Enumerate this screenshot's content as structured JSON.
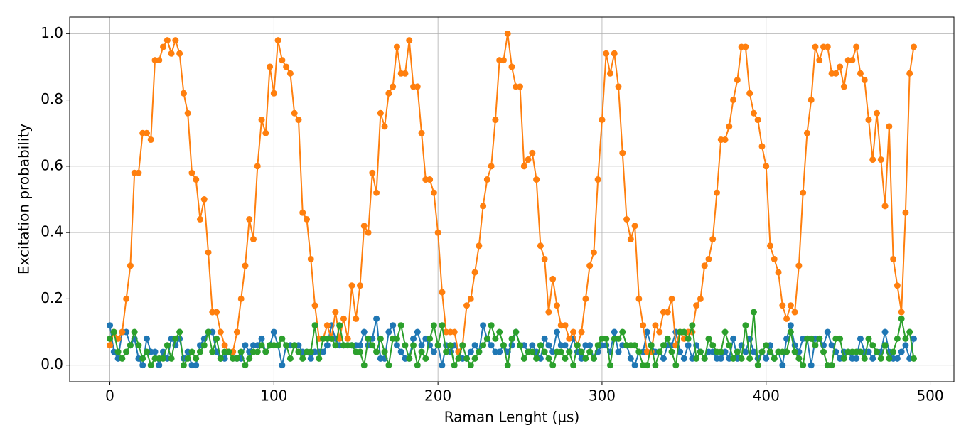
{
  "chart_data": {
    "type": "line",
    "xlabel": "Raman Lenght (μs)",
    "ylabel": "Excitation probability",
    "xlim": [
      -24.5,
      514.5
    ],
    "ylim": [
      -0.05,
      1.05
    ],
    "xticks": [
      0,
      100,
      200,
      300,
      400,
      500
    ],
    "yticks": [
      {
        "value": 0,
        "label": "0.0"
      },
      {
        "value": 0.2,
        "label": "0.2"
      },
      {
        "value": 0.4,
        "label": "0.4"
      },
      {
        "value": 0.6,
        "label": "0.6"
      },
      {
        "value": 0.8,
        "label": "0.8"
      },
      {
        "value": 1,
        "label": "1.0"
      }
    ],
    "grid": true,
    "x": [
      0,
      2.5,
      5,
      7.5,
      10,
      12.5,
      15,
      17.5,
      20,
      22.5,
      25,
      27.5,
      30,
      32.5,
      35,
      37.5,
      40,
      42.5,
      45,
      47.5,
      50,
      52.5,
      55,
      57.5,
      60,
      62.5,
      65,
      67.5,
      70,
      72.5,
      75,
      77.5,
      80,
      82.5,
      85,
      87.5,
      90,
      92.5,
      95,
      97.5,
      100,
      102.5,
      105,
      107.5,
      110,
      112.5,
      115,
      117.5,
      120,
      122.5,
      125,
      127.5,
      130,
      132.5,
      135,
      137.5,
      140,
      142.5,
      145,
      147.5,
      150,
      152.5,
      155,
      157.5,
      160,
      162.5,
      165,
      167.5,
      170,
      172.5,
      175,
      177.5,
      180,
      182.5,
      185,
      187.5,
      190,
      192.5,
      195,
      197.5,
      200,
      202.5,
      205,
      207.5,
      210,
      212.5,
      215,
      217.5,
      220,
      222.5,
      225,
      227.5,
      230,
      232.5,
      235,
      237.5,
      240,
      242.5,
      245,
      247.5,
      250,
      252.5,
      255,
      257.5,
      260,
      262.5,
      265,
      267.5,
      270,
      272.5,
      275,
      277.5,
      280,
      282.5,
      285,
      287.5,
      290,
      292.5,
      295,
      297.5,
      300,
      302.5,
      305,
      307.5,
      310,
      312.5,
      315,
      317.5,
      320,
      322.5,
      325,
      327.5,
      330,
      332.5,
      335,
      337.5,
      340,
      342.5,
      345,
      347.5,
      350,
      352.5,
      355,
      357.5,
      360,
      362.5,
      365,
      367.5,
      370,
      372.5,
      375,
      377.5,
      380,
      382.5,
      385,
      387.5,
      390,
      392.5,
      395,
      397.5,
      400,
      402.5,
      405,
      407.5,
      410,
      412.5,
      415,
      417.5,
      420,
      422.5,
      425,
      427.5,
      430,
      432.5,
      435,
      437.5,
      440,
      442.5,
      445,
      447.5,
      450,
      452.5,
      455,
      457.5,
      460,
      462.5,
      465,
      467.5,
      470,
      472.5,
      475,
      477.5,
      480,
      482.5,
      485,
      487.5,
      490
    ],
    "series": [
      {
        "color": "#1f77b4",
        "values": [
          0.12,
          0.04,
          0.02,
          0.1,
          0.1,
          0.06,
          0.08,
          0.02,
          0.0,
          0.08,
          0.04,
          0.04,
          0.0,
          0.04,
          0.02,
          0.08,
          0.06,
          0.08,
          0.02,
          0.04,
          0.0,
          0.0,
          0.06,
          0.08,
          0.1,
          0.1,
          0.04,
          0.02,
          0.02,
          0.04,
          0.04,
          0.02,
          0.02,
          0.06,
          0.04,
          0.06,
          0.06,
          0.08,
          0.04,
          0.06,
          0.1,
          0.06,
          0.0,
          0.06,
          0.06,
          0.06,
          0.06,
          0.04,
          0.04,
          0.02,
          0.04,
          0.04,
          0.04,
          0.06,
          0.12,
          0.08,
          0.06,
          0.06,
          0.06,
          0.06,
          0.06,
          0.06,
          0.1,
          0.06,
          0.08,
          0.14,
          0.02,
          0.02,
          0.1,
          0.12,
          0.06,
          0.04,
          0.02,
          0.02,
          0.08,
          0.1,
          0.06,
          0.08,
          0.06,
          0.04,
          0.06,
          0.0,
          0.06,
          0.04,
          0.06,
          0.04,
          0.02,
          0.02,
          0.04,
          0.06,
          0.04,
          0.12,
          0.08,
          0.06,
          0.04,
          0.04,
          0.06,
          0.04,
          0.06,
          0.1,
          0.06,
          0.06,
          0.04,
          0.06,
          0.04,
          0.02,
          0.08,
          0.06,
          0.04,
          0.1,
          0.06,
          0.06,
          0.04,
          0.08,
          0.04,
          0.02,
          0.06,
          0.06,
          0.02,
          0.04,
          0.06,
          0.06,
          0.04,
          0.1,
          0.04,
          0.06,
          0.06,
          0.02,
          0.0,
          0.04,
          0.04,
          0.1,
          0.06,
          0.04,
          0.04,
          0.02,
          0.06,
          0.06,
          0.1,
          0.04,
          0.02,
          0.06,
          0.02,
          0.06,
          0.04,
          0.02,
          0.04,
          0.04,
          0.02,
          0.02,
          0.04,
          0.02,
          0.08,
          0.02,
          0.06,
          0.04,
          0.08,
          0.04,
          0.02,
          0.04,
          0.02,
          0.06,
          0.02,
          0.04,
          0.0,
          0.08,
          0.12,
          0.06,
          0.04,
          0.08,
          0.08,
          0.0,
          0.08,
          0.08,
          0.06,
          0.1,
          0.06,
          0.04,
          0.02,
          0.04,
          0.04,
          0.02,
          0.02,
          0.08,
          0.04,
          0.04,
          0.02,
          0.04,
          0.04,
          0.1,
          0.04,
          0.02,
          0.02,
          0.04,
          0.06,
          0.02,
          0.08
        ]
      },
      {
        "color": "#ff7f0e",
        "values": [
          0.06,
          0.1,
          0.08,
          0.1,
          0.2,
          0.3,
          0.58,
          0.58,
          0.7,
          0.7,
          0.68,
          0.92,
          0.92,
          0.96,
          0.98,
          0.94,
          0.98,
          0.94,
          0.82,
          0.76,
          0.58,
          0.56,
          0.44,
          0.5,
          0.34,
          0.16,
          0.16,
          0.1,
          0.06,
          0.04,
          0.04,
          0.1,
          0.2,
          0.3,
          0.44,
          0.38,
          0.6,
          0.74,
          0.7,
          0.9,
          0.82,
          0.98,
          0.92,
          0.9,
          0.88,
          0.76,
          0.74,
          0.46,
          0.44,
          0.32,
          0.18,
          0.08,
          0.08,
          0.12,
          0.08,
          0.16,
          0.08,
          0.14,
          0.08,
          0.24,
          0.14,
          0.24,
          0.42,
          0.4,
          0.58,
          0.52,
          0.76,
          0.72,
          0.82,
          0.84,
          0.96,
          0.88,
          0.88,
          0.98,
          0.84,
          0.84,
          0.7,
          0.56,
          0.56,
          0.52,
          0.4,
          0.22,
          0.1,
          0.1,
          0.1,
          0.04,
          0.06,
          0.18,
          0.2,
          0.28,
          0.36,
          0.48,
          0.56,
          0.6,
          0.74,
          0.92,
          0.92,
          1.0,
          0.9,
          0.84,
          0.84,
          0.6,
          0.62,
          0.64,
          0.56,
          0.36,
          0.32,
          0.16,
          0.26,
          0.18,
          0.12,
          0.12,
          0.08,
          0.1,
          0.06,
          0.1,
          0.2,
          0.3,
          0.34,
          0.56,
          0.74,
          0.94,
          0.88,
          0.94,
          0.84,
          0.64,
          0.44,
          0.38,
          0.42,
          0.2,
          0.12,
          0.04,
          0.04,
          0.12,
          0.1,
          0.16,
          0.16,
          0.2,
          0.06,
          0.1,
          0.08,
          0.1,
          0.1,
          0.18,
          0.2,
          0.3,
          0.32,
          0.38,
          0.52,
          0.68,
          0.68,
          0.72,
          0.8,
          0.86,
          0.96,
          0.96,
          0.82,
          0.76,
          0.74,
          0.66,
          0.6,
          0.36,
          0.32,
          0.28,
          0.18,
          0.14,
          0.18,
          0.16,
          0.3,
          0.52,
          0.7,
          0.8,
          0.96,
          0.92,
          0.96,
          0.96,
          0.88,
          0.88,
          0.9,
          0.84,
          0.92,
          0.92,
          0.96,
          0.88,
          0.86,
          0.74,
          0.62,
          0.76,
          0.62,
          0.48,
          0.72,
          0.32,
          0.24,
          0.16,
          0.46,
          0.88,
          0.96
        ]
      },
      {
        "color": "#2ca02c",
        "values": [
          0.08,
          0.1,
          0.04,
          0.02,
          0.04,
          0.06,
          0.1,
          0.06,
          0.02,
          0.04,
          0.0,
          0.02,
          0.02,
          0.02,
          0.06,
          0.02,
          0.08,
          0.1,
          0.0,
          0.02,
          0.04,
          0.02,
          0.04,
          0.06,
          0.1,
          0.04,
          0.08,
          0.02,
          0.04,
          0.04,
          0.02,
          0.02,
          0.04,
          0.0,
          0.02,
          0.04,
          0.04,
          0.06,
          0.04,
          0.06,
          0.06,
          0.06,
          0.08,
          0.06,
          0.02,
          0.06,
          0.04,
          0.02,
          0.04,
          0.04,
          0.12,
          0.02,
          0.08,
          0.08,
          0.08,
          0.06,
          0.12,
          0.06,
          0.06,
          0.06,
          0.04,
          0.04,
          0.0,
          0.08,
          0.06,
          0.04,
          0.08,
          0.04,
          0.0,
          0.08,
          0.08,
          0.12,
          0.06,
          0.02,
          0.06,
          0.0,
          0.04,
          0.02,
          0.08,
          0.12,
          0.06,
          0.12,
          0.04,
          0.06,
          0.0,
          0.02,
          0.06,
          0.02,
          0.0,
          0.02,
          0.04,
          0.06,
          0.08,
          0.12,
          0.08,
          0.1,
          0.06,
          0.0,
          0.08,
          0.1,
          0.06,
          0.02,
          0.04,
          0.04,
          0.02,
          0.06,
          0.04,
          0.02,
          0.0,
          0.04,
          0.04,
          0.02,
          0.04,
          0.0,
          0.06,
          0.04,
          0.02,
          0.04,
          0.02,
          0.06,
          0.08,
          0.08,
          0.0,
          0.08,
          0.08,
          0.1,
          0.06,
          0.06,
          0.06,
          0.04,
          0.0,
          0.0,
          0.06,
          0.0,
          0.04,
          0.06,
          0.08,
          0.04,
          0.0,
          0.1,
          0.1,
          0.08,
          0.12,
          0.02,
          0.04,
          0.02,
          0.08,
          0.06,
          0.04,
          0.04,
          0.1,
          0.06,
          0.02,
          0.04,
          0.02,
          0.12,
          0.02,
          0.16,
          0.0,
          0.04,
          0.06,
          0.04,
          0.02,
          0.04,
          0.04,
          0.04,
          0.1,
          0.04,
          0.02,
          0.0,
          0.08,
          0.08,
          0.06,
          0.08,
          0.04,
          0.0,
          0.0,
          0.08,
          0.08,
          0.02,
          0.04,
          0.04,
          0.04,
          0.04,
          0.02,
          0.08,
          0.06,
          0.04,
          0.02,
          0.06,
          0.02,
          0.04,
          0.08,
          0.14,
          0.08,
          0.1,
          0.02
        ]
      }
    ]
  }
}
